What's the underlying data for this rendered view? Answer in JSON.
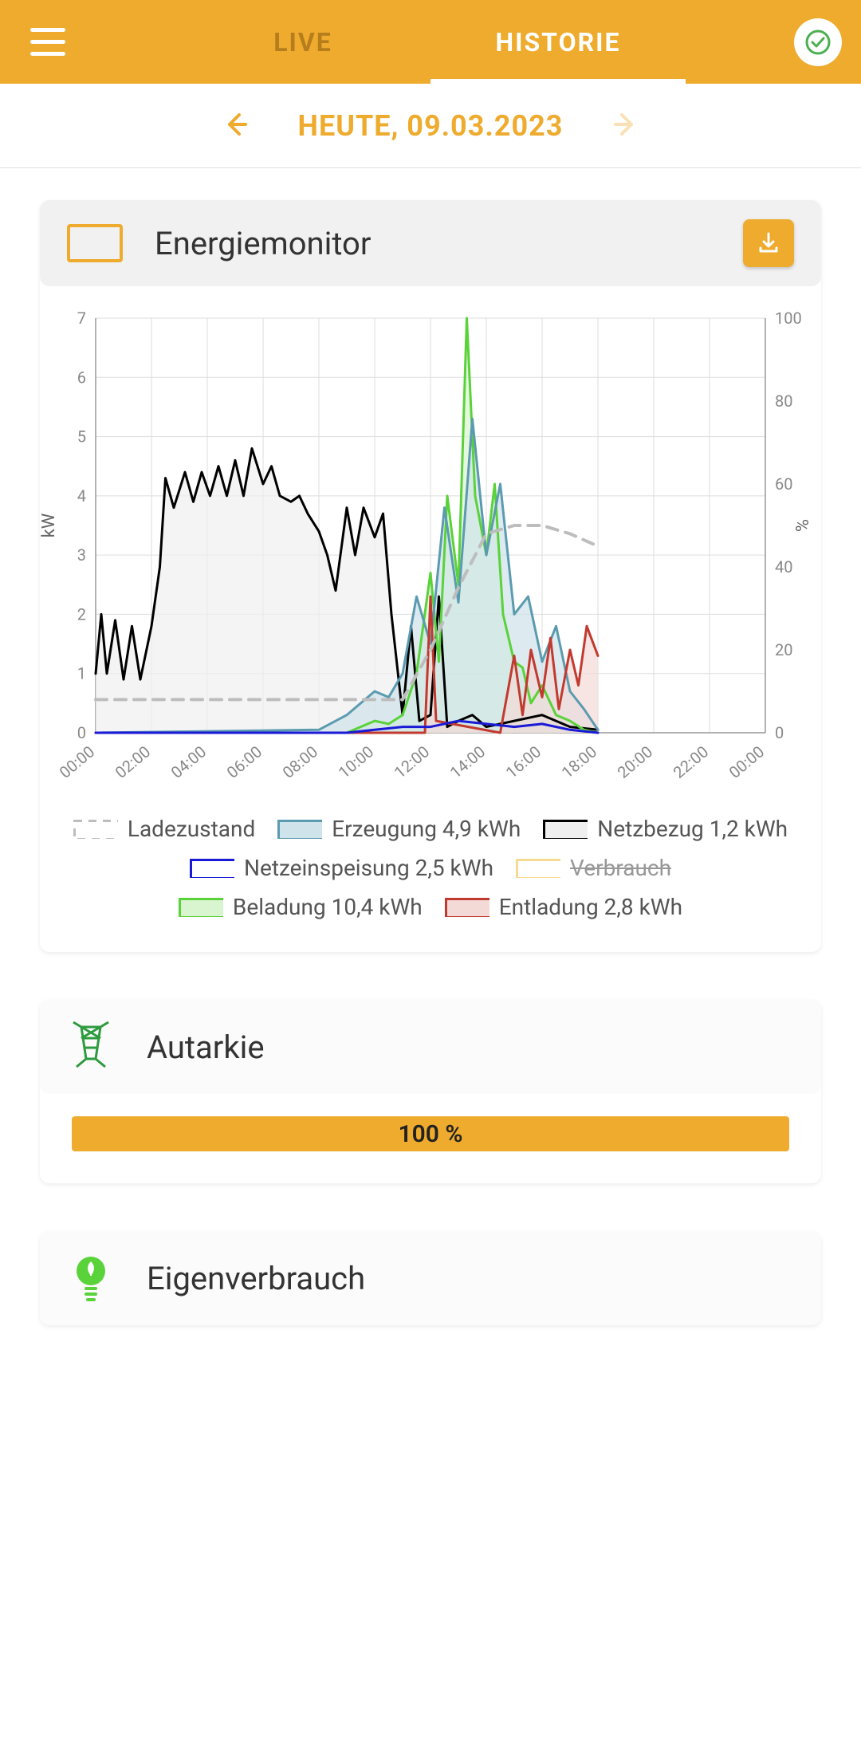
{
  "header": {
    "tab_live": "LIVE",
    "tab_historie": "HISTORIE",
    "active_tab": "HISTORIE"
  },
  "date_nav": {
    "label": "HEUTE, 09.03.2023",
    "prev_enabled": true,
    "next_enabled": false
  },
  "energymonitor": {
    "title": "Energiemonitor",
    "chart": {
      "type": "line-area",
      "x_labels": [
        "00:00",
        "02:00",
        "04:00",
        "06:00",
        "08:00",
        "10:00",
        "12:00",
        "14:00",
        "16:00",
        "18:00",
        "20:00",
        "22:00",
        "00:00"
      ],
      "y_left": {
        "label": "kW",
        "min": 0,
        "max": 7,
        "ticks": [
          0,
          1,
          2,
          3,
          4,
          5,
          6,
          7
        ],
        "fontsize": 22
      },
      "y_right": {
        "label": "%",
        "min": 0,
        "max": 100,
        "ticks": [
          0,
          20,
          40,
          60,
          80,
          100
        ],
        "fontsize": 22
      },
      "background_color": "#ffffff",
      "grid_color": "#dddddd",
      "series": {
        "ladezustand": {
          "label": "Ladezustand",
          "color": "#bdbdbd",
          "style": "dashed",
          "line_width": 4,
          "axis": "right",
          "data": [
            [
              0,
              8
            ],
            [
              2,
              8
            ],
            [
              4,
              8
            ],
            [
              6,
              8
            ],
            [
              8,
              8
            ],
            [
              10,
              8
            ],
            [
              11,
              8
            ],
            [
              12,
              20
            ],
            [
              13,
              35
            ],
            [
              14,
              48
            ],
            [
              15,
              50
            ],
            [
              16,
              50
            ],
            [
              17,
              48
            ],
            [
              18,
              45
            ]
          ]
        },
        "erzeugung": {
          "label": "Erzeugung 4,9 kWh",
          "color": "#5b9bb0",
          "fill": "#cfe3ea",
          "line_width": 3,
          "axis": "left",
          "data": [
            [
              0,
              0
            ],
            [
              8,
              0.05
            ],
            [
              9,
              0.3
            ],
            [
              10,
              0.7
            ],
            [
              10.5,
              0.6
            ],
            [
              11,
              1.0
            ],
            [
              11.5,
              2.3
            ],
            [
              12,
              1.5
            ],
            [
              12.5,
              3.8
            ],
            [
              13,
              2.2
            ],
            [
              13.5,
              5.3
            ],
            [
              14,
              3.0
            ],
            [
              14.5,
              4.2
            ],
            [
              15,
              2.0
            ],
            [
              15.5,
              2.3
            ],
            [
              16,
              1.2
            ],
            [
              16.5,
              1.8
            ],
            [
              17,
              0.7
            ],
            [
              17.5,
              0.4
            ],
            [
              18,
              0.05
            ]
          ]
        },
        "netzbezug": {
          "label": "Netzbezug 1,2 kWh",
          "color": "#000000",
          "fill": "#efefef",
          "line_width": 3,
          "axis": "left",
          "data": [
            [
              0,
              1.0
            ],
            [
              0.2,
              2.0
            ],
            [
              0.4,
              1.0
            ],
            [
              0.7,
              1.9
            ],
            [
              1.0,
              0.9
            ],
            [
              1.3,
              1.8
            ],
            [
              1.6,
              0.9
            ],
            [
              2.0,
              1.8
            ],
            [
              2.3,
              2.8
            ],
            [
              2.5,
              4.3
            ],
            [
              2.8,
              3.8
            ],
            [
              3.2,
              4.4
            ],
            [
              3.5,
              3.9
            ],
            [
              3.8,
              4.4
            ],
            [
              4.1,
              4.0
            ],
            [
              4.4,
              4.5
            ],
            [
              4.7,
              4.0
            ],
            [
              5.0,
              4.6
            ],
            [
              5.3,
              4.0
            ],
            [
              5.6,
              4.8
            ],
            [
              6.0,
              4.2
            ],
            [
              6.3,
              4.5
            ],
            [
              6.6,
              4.0
            ],
            [
              7.0,
              3.9
            ],
            [
              7.3,
              4.0
            ],
            [
              7.6,
              3.7
            ],
            [
              8.0,
              3.4
            ],
            [
              8.3,
              3.0
            ],
            [
              8.6,
              2.4
            ],
            [
              9.0,
              3.8
            ],
            [
              9.3,
              3.0
            ],
            [
              9.6,
              3.8
            ],
            [
              10.0,
              3.3
            ],
            [
              10.3,
              3.7
            ],
            [
              10.6,
              2.0
            ],
            [
              11.0,
              0.3
            ],
            [
              11.3,
              1.8
            ],
            [
              11.6,
              0.2
            ],
            [
              12.0,
              0.3
            ],
            [
              12.3,
              2.3
            ],
            [
              12.6,
              0.1
            ],
            [
              13.0,
              0.2
            ],
            [
              13.5,
              0.3
            ],
            [
              14.0,
              0.1
            ],
            [
              15.0,
              0.2
            ],
            [
              16.0,
              0.3
            ],
            [
              17.0,
              0.1
            ],
            [
              18.0,
              0.05
            ]
          ]
        },
        "netzeinspeisung": {
          "label": "Netzeinspeisung 2,5 kWh",
          "color": "#1a1ad6",
          "fill": "none",
          "line_width": 3,
          "axis": "left",
          "data": [
            [
              0,
              0
            ],
            [
              9,
              0
            ],
            [
              10,
              0.05
            ],
            [
              11,
              0.1
            ],
            [
              12,
              0.1
            ],
            [
              13,
              0.2
            ],
            [
              14,
              0.15
            ],
            [
              15,
              0.1
            ],
            [
              16,
              0.15
            ],
            [
              17,
              0.05
            ],
            [
              18,
              0
            ]
          ]
        },
        "verbrauch": {
          "label": "Verbrauch",
          "color": "#f2c24b",
          "fill": "none",
          "line_width": 3,
          "axis": "left",
          "disabled": true,
          "data": []
        },
        "beladung": {
          "label": "Beladung 10,4 kWh",
          "color": "#5ad23a",
          "fill": "#d9f5d0",
          "line_width": 3,
          "axis": "left",
          "data": [
            [
              0,
              0
            ],
            [
              9,
              0
            ],
            [
              9.5,
              0.1
            ],
            [
              10,
              0.2
            ],
            [
              10.5,
              0.15
            ],
            [
              11,
              0.3
            ],
            [
              11.5,
              1.0
            ],
            [
              12,
              2.7
            ],
            [
              12.3,
              1.2
            ],
            [
              12.6,
              4.0
            ],
            [
              13,
              2.5
            ],
            [
              13.3,
              7.0
            ],
            [
              13.6,
              4.0
            ],
            [
              14,
              3.0
            ],
            [
              14.3,
              4.2
            ],
            [
              14.6,
              2.0
            ],
            [
              15,
              1.2
            ],
            [
              15.3,
              1.1
            ],
            [
              15.6,
              0.5
            ],
            [
              16,
              0.8
            ],
            [
              16.5,
              0.3
            ],
            [
              17,
              0.2
            ],
            [
              17.5,
              0.05
            ],
            [
              18,
              0
            ]
          ]
        },
        "entladung": {
          "label": "Entladung 2,8 kWh",
          "color": "#c23a2f",
          "fill": "#f3dad7",
          "line_width": 3,
          "axis": "left",
          "data": [
            [
              0,
              0
            ],
            [
              11.8,
              0
            ],
            [
              12,
              2.3
            ],
            [
              12.2,
              0.2
            ],
            [
              14.5,
              0
            ],
            [
              15,
              1.3
            ],
            [
              15.3,
              0.3
            ],
            [
              15.6,
              1.4
            ],
            [
              16,
              0.6
            ],
            [
              16.3,
              1.6
            ],
            [
              16.6,
              0.4
            ],
            [
              17,
              1.4
            ],
            [
              17.3,
              0.8
            ],
            [
              17.6,
              1.8
            ],
            [
              18,
              1.3
            ]
          ]
        }
      }
    }
  },
  "autarkie": {
    "title": "Autarkie",
    "value": "100 %",
    "percent": 100,
    "bar_color": "#eeab2d"
  },
  "eigenverbrauch": {
    "title": "Eigenverbrauch",
    "icon_color": "#5ad23a"
  },
  "colors": {
    "accent": "#eeab2d",
    "status_ok": "#4caf50"
  }
}
